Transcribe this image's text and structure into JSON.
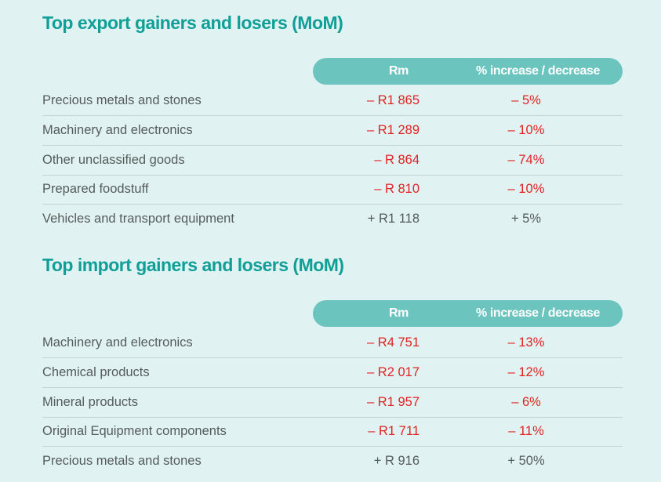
{
  "exports": {
    "title": "Top export gainers and losers (MoM)",
    "col_rm": "Rm",
    "col_pct": "% increase / decrease",
    "rows": [
      {
        "label": "Precious metals and stones",
        "rm": "– R1 865",
        "pct": "– 5%",
        "dir": "neg"
      },
      {
        "label": "Machinery and electronics",
        "rm": "– R1 289",
        "pct": "– 10%",
        "dir": "neg"
      },
      {
        "label": "Other unclassified goods",
        "rm": "– R 864",
        "pct": "– 74%",
        "dir": "neg"
      },
      {
        "label": "Prepared foodstuff",
        "rm": "– R 810",
        "pct": "– 10%",
        "dir": "neg"
      },
      {
        "label": "Vehicles and transport equipment",
        "rm": "+ R1 118",
        "pct": "+ 5%",
        "dir": "pos"
      }
    ]
  },
  "imports": {
    "title": "Top import gainers and losers (MoM)",
    "col_rm": "Rm",
    "col_pct": "% increase / decrease",
    "rows": [
      {
        "label": "Machinery and electronics",
        "rm": "– R4 751",
        "pct": "– 13%",
        "dir": "neg"
      },
      {
        "label": "Chemical products",
        "rm": "– R2 017",
        "pct": "– 12%",
        "dir": "neg"
      },
      {
        "label": "Mineral products",
        "rm": "– R1 957",
        "pct": "– 6%",
        "dir": "neg"
      },
      {
        "label": "Original Equipment components",
        "rm": "– R1 711",
        "pct": "– 11%",
        "dir": "neg"
      },
      {
        "label": "Precious metals and stones",
        "rm": "+ R 916",
        "pct": "+ 50%",
        "dir": "pos"
      }
    ]
  }
}
